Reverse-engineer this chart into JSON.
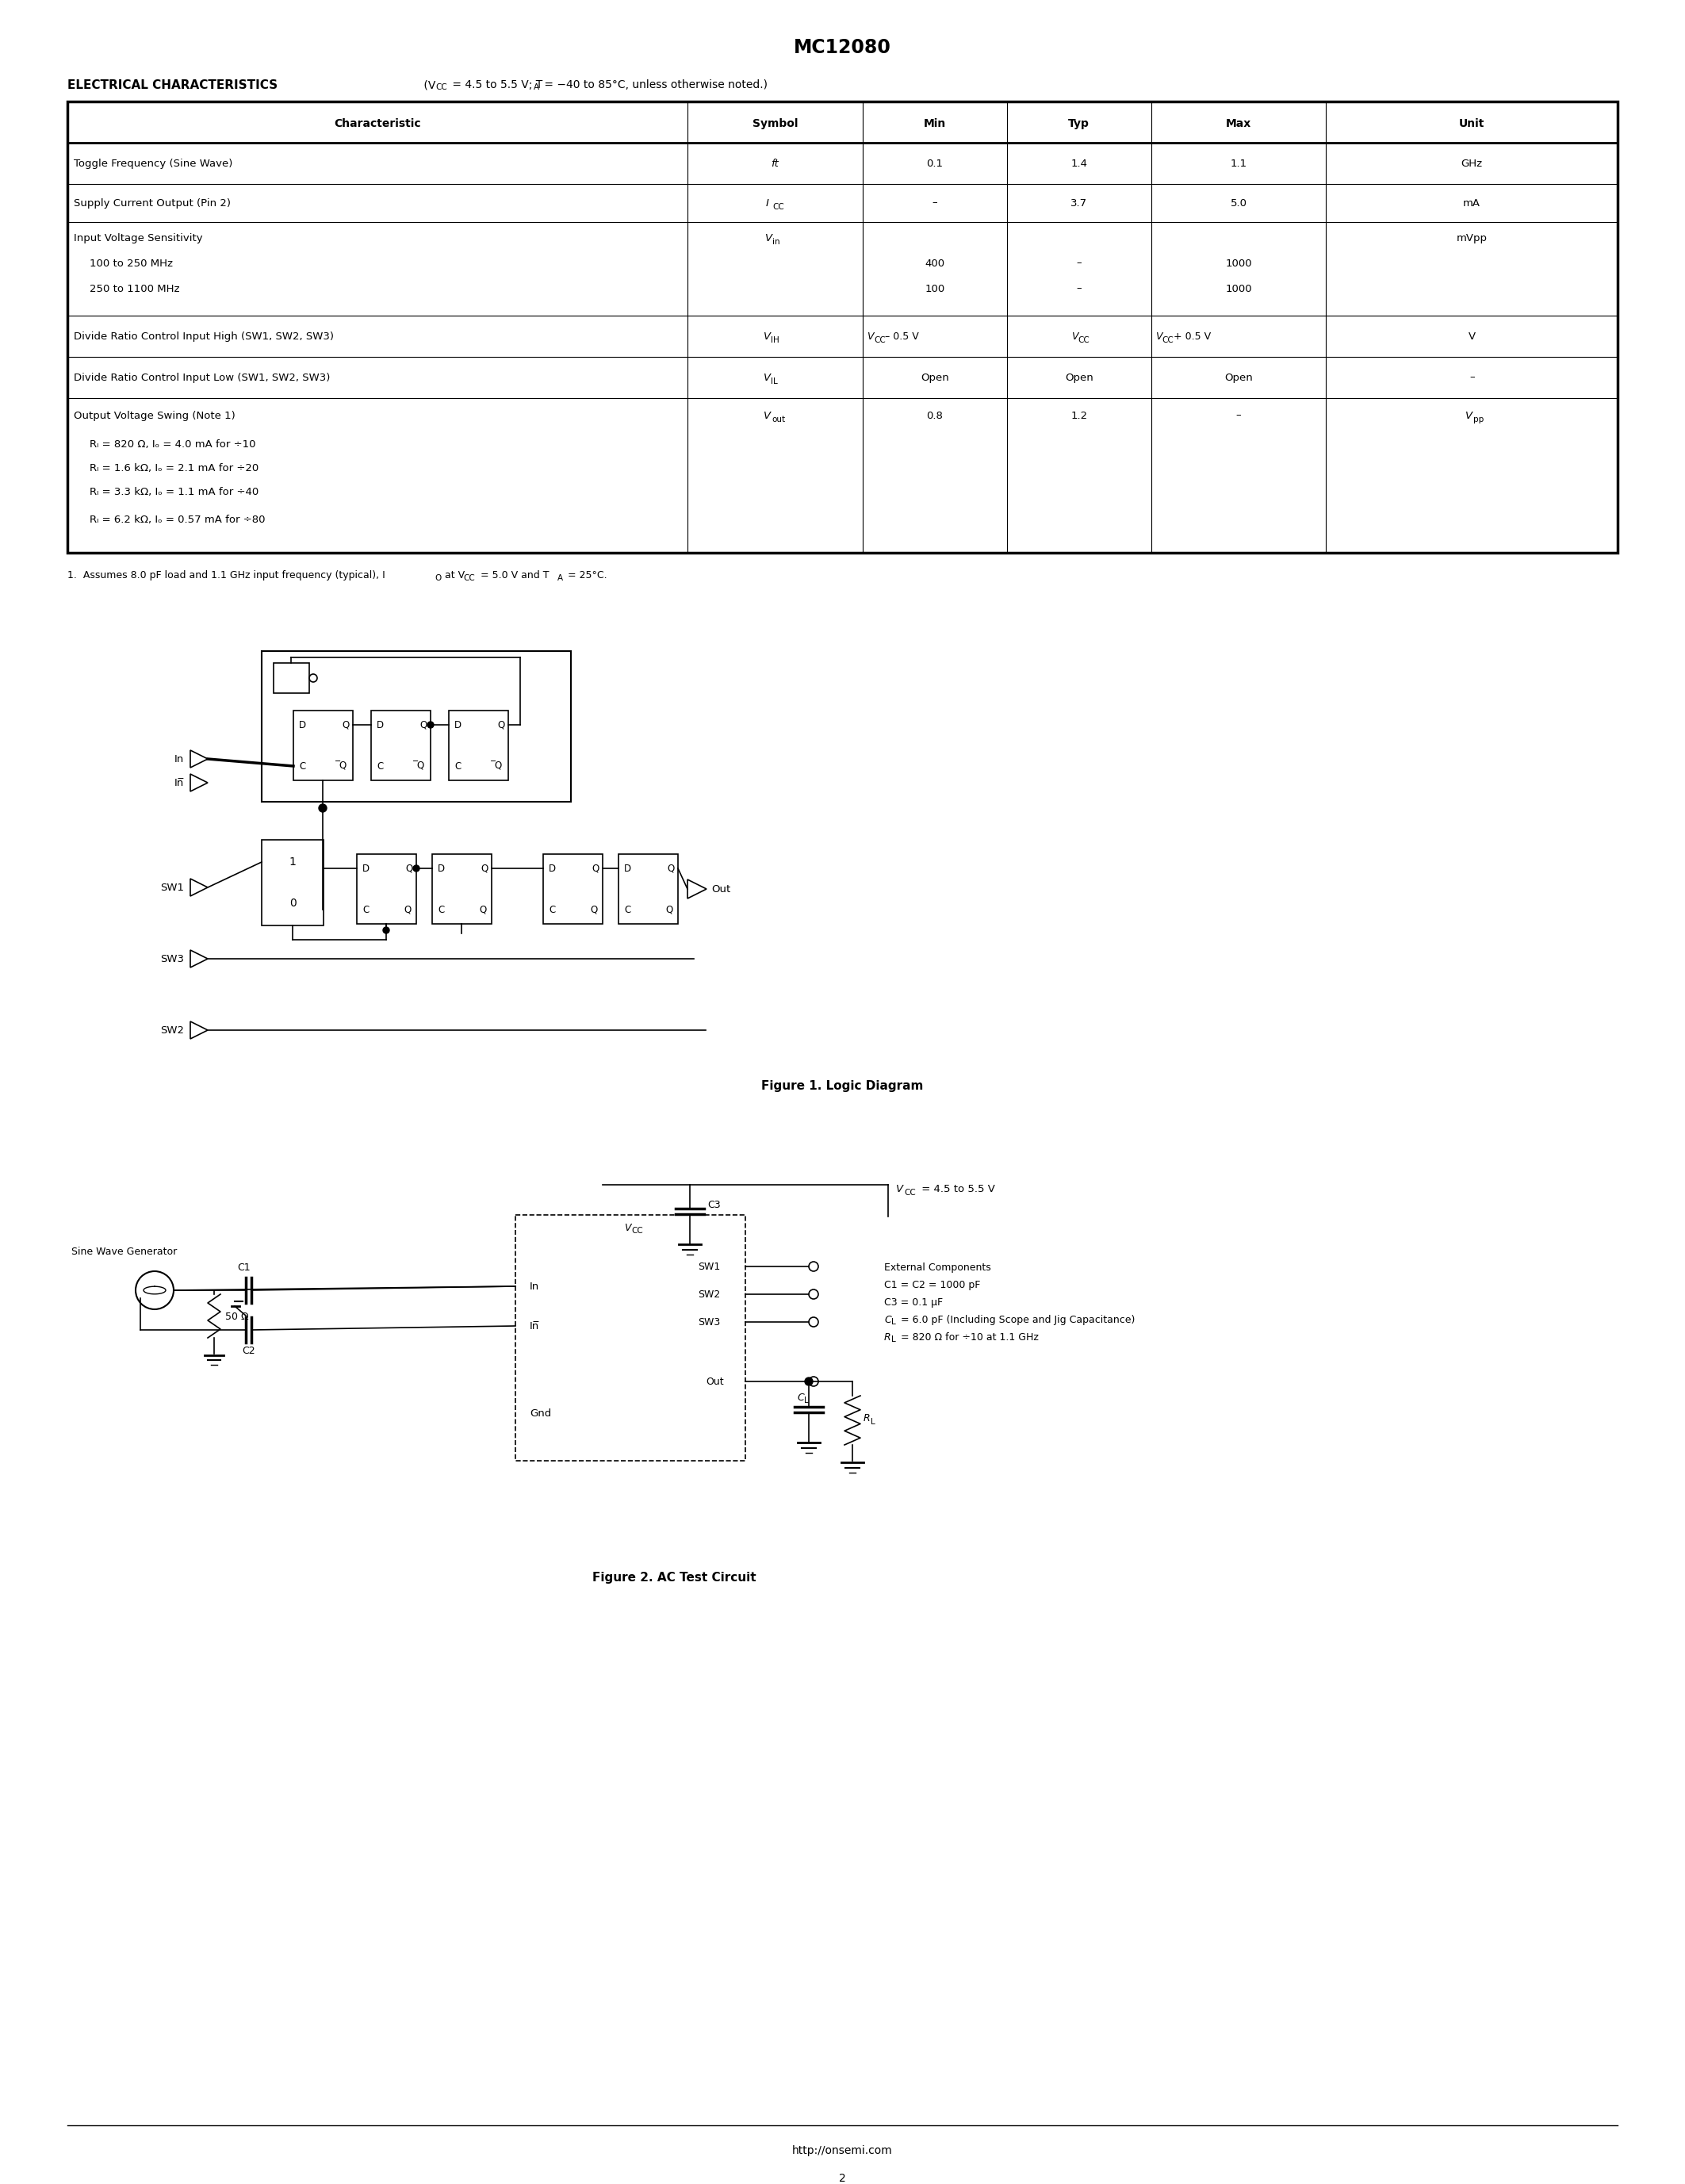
{
  "title": "MC12080",
  "background_color": "#ffffff",
  "footer_url": "http://onsemi.com",
  "footer_page": "2",
  "fig1_caption": "Figure 1. Logic Diagram",
  "fig2_caption": "Figure 2. AC Test Circuit"
}
